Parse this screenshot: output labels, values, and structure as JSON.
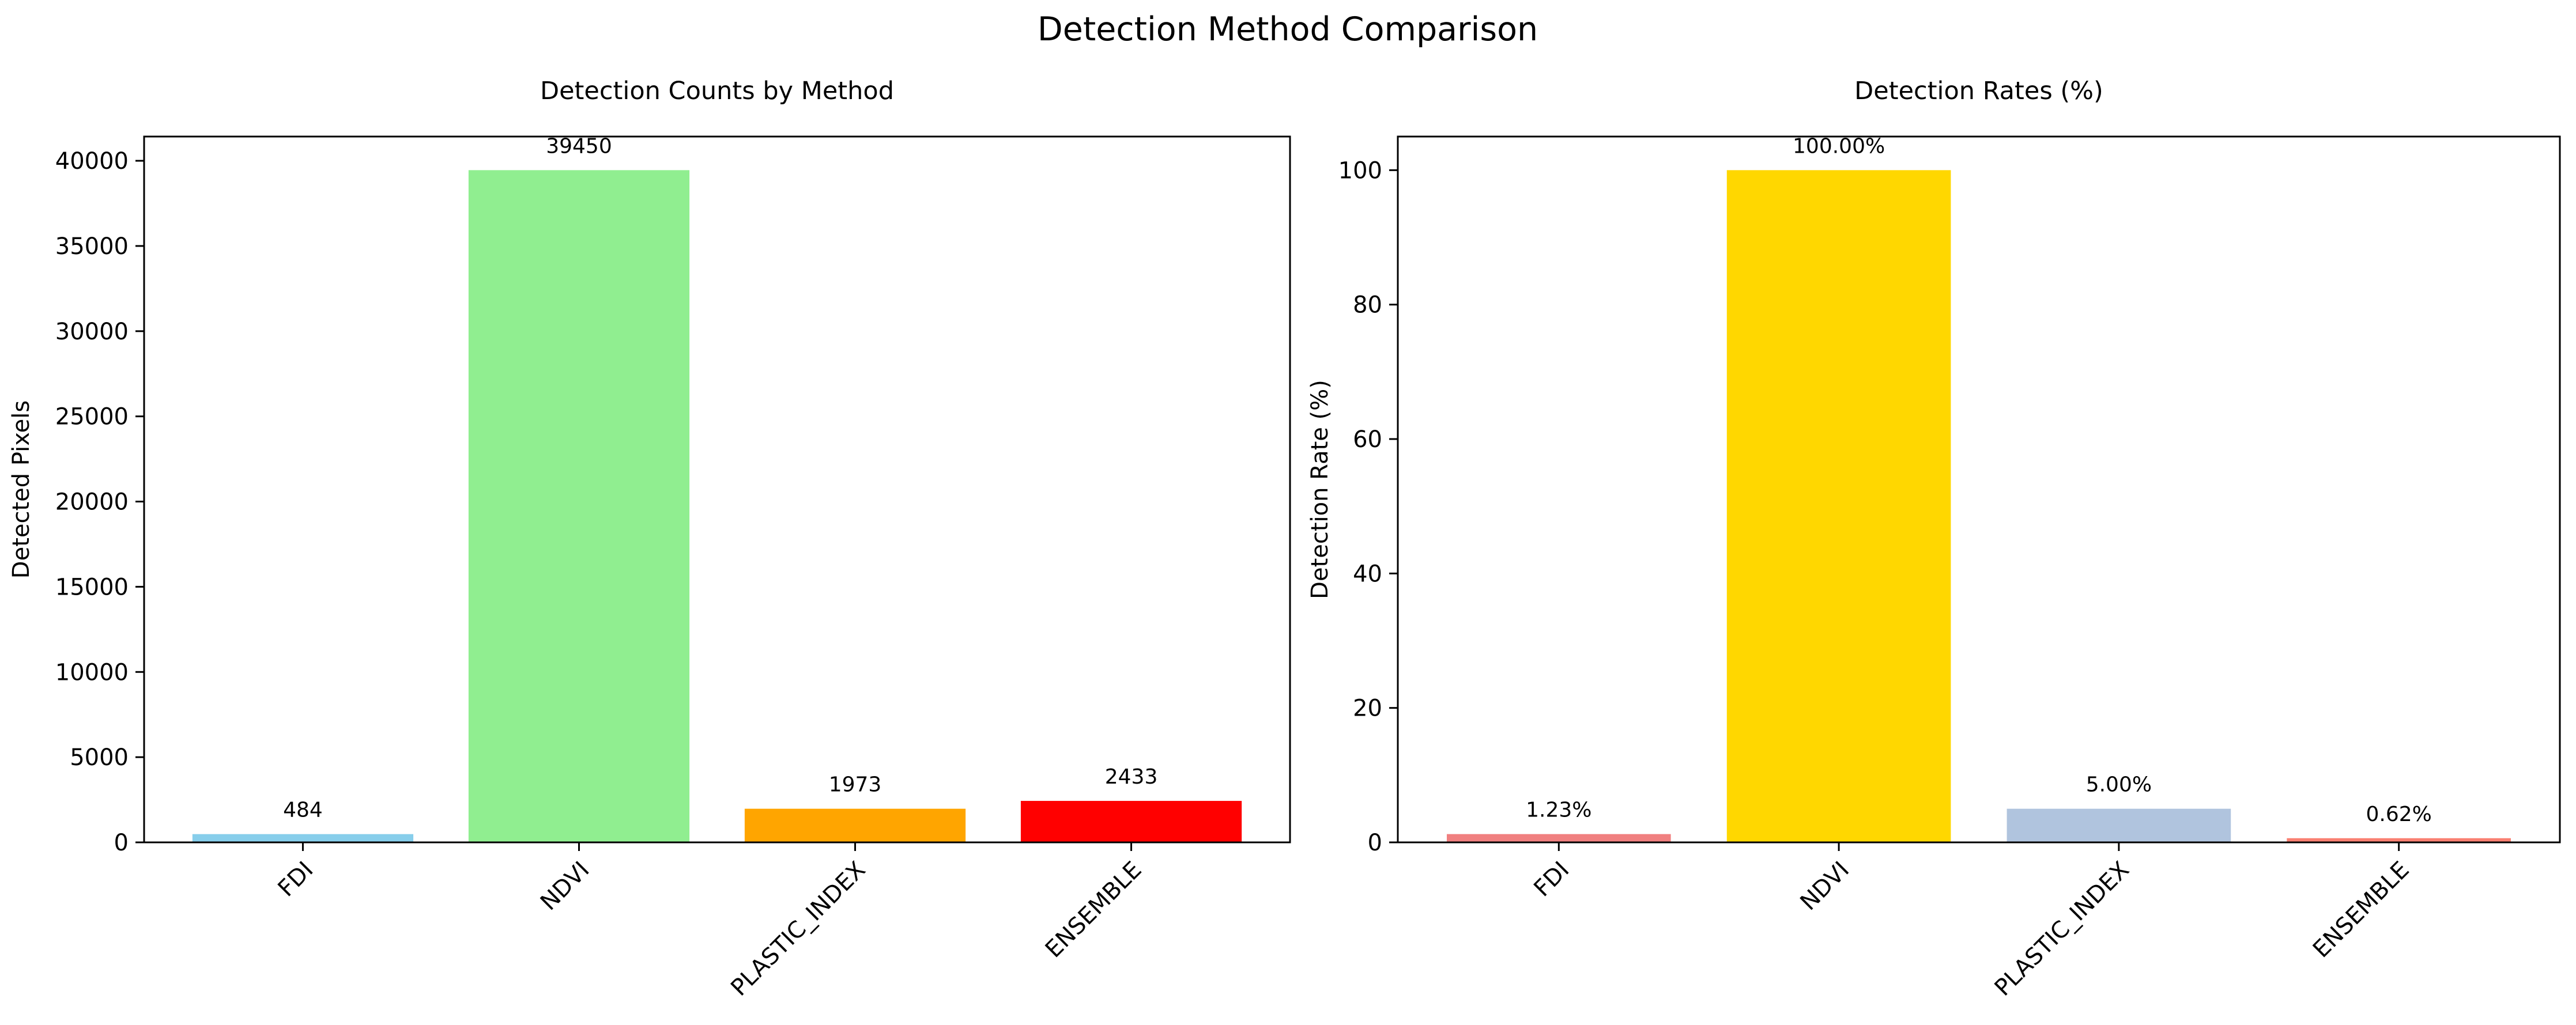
{
  "figure_title": "Detection Method Comparison",
  "chart_data": [
    {
      "type": "bar",
      "title": "Detection Counts by Method",
      "xlabel": "",
      "ylabel": "Detected Pixels",
      "categories": [
        "FDI",
        "NDVI",
        "PLASTIC_INDEX",
        "ENSEMBLE"
      ],
      "values": [
        484,
        39450,
        1973,
        2433
      ],
      "value_labels": [
        "484",
        "39450",
        "1973",
        "2433"
      ],
      "colors": [
        "#87ceeb",
        "#90ee90",
        "#ffa500",
        "#ff0000"
      ],
      "ylim": [
        0,
        41422
      ],
      "yticks": [
        0,
        5000,
        10000,
        15000,
        20000,
        25000,
        30000,
        35000,
        40000
      ],
      "grid": false,
      "tick_rotation": 45
    },
    {
      "type": "bar",
      "title": "Detection Rates (%)",
      "xlabel": "",
      "ylabel": "Detection Rate (%)",
      "categories": [
        "FDI",
        "NDVI",
        "PLASTIC_INDEX",
        "ENSEMBLE"
      ],
      "values": [
        1.23,
        100.0,
        5.0,
        0.62
      ],
      "value_labels": [
        "1.23%",
        "100.00%",
        "5.00%",
        "0.62%"
      ],
      "colors": [
        "#f08080",
        "#ffd700",
        "#b0c4de",
        "#fa8072"
      ],
      "ylim": [
        0,
        105
      ],
      "yticks": [
        0,
        20,
        40,
        60,
        80,
        100
      ],
      "grid": false,
      "tick_rotation": 45
    }
  ]
}
